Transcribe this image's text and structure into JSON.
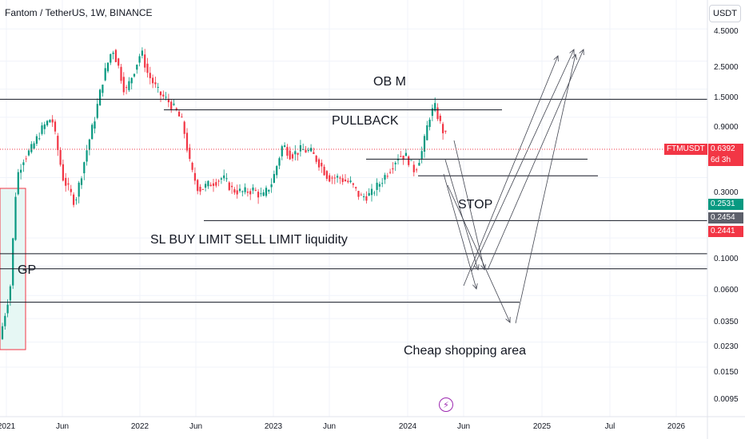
{
  "header": {
    "title": "Fantom / TetherUS, 1W, BINANCE",
    "currency_button": "USDT"
  },
  "annotations": {
    "ob_m": "OB M",
    "pullback": "PULLBACK",
    "stop": "STOP",
    "liquidity": "SL BUY LIMIT SELL LIMIT liquidity",
    "gp": "GP",
    "cheap_area": "Cheap shopping area"
  },
  "chart_data": {
    "type": "candlestick",
    "title": "Fantom / TetherUS, 1W, BINANCE",
    "xlabel": "",
    "ylabel": "",
    "y_scale": "log",
    "y_ticks": [
      "4.5000",
      "2.5000",
      "1.5000",
      "0.9000",
      "0.3000",
      "0.1000",
      "0.0600",
      "0.0350",
      "0.0230",
      "0.0150",
      "0.0095"
    ],
    "x_ticks": [
      "2021",
      "Jun",
      "2022",
      "Jun",
      "2023",
      "Jun",
      "2024",
      "Jun",
      "2025",
      "Jul",
      "2026"
    ],
    "price_tags": {
      "symbol": "FTMUSDT",
      "last": "0.6392",
      "countdown": "6d 3h",
      "level_a": "0.2531",
      "level_b": "0.2454",
      "level_c": "0.2441"
    },
    "horizontal_levels": [
      1.25,
      1.03,
      0.42,
      0.31,
      0.137,
      0.075,
      0.057,
      0.031
    ],
    "grid": true,
    "colors": {
      "up": "#089981",
      "down": "#f23645",
      "lines": "#131722",
      "last_price_line": "#f23645"
    }
  }
}
